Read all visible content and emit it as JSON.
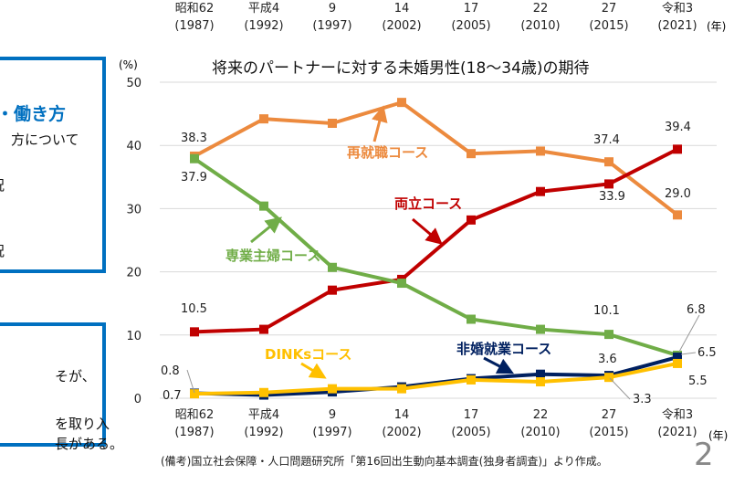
{
  "left_panel": {
    "box1": {
      "heading": "・働き方",
      "lines": [
        "方について",
        "況",
        "況"
      ]
    },
    "box2": {
      "lines": [
        "そが、",
        "を取り入",
        "長がある。"
      ]
    }
  },
  "top_axis": {
    "labels": [
      [
        "昭和62",
        "(1987)"
      ],
      [
        "平成4",
        "(1992)"
      ],
      [
        "9",
        "(1997)"
      ],
      [
        "14",
        "(2002)"
      ],
      [
        "17",
        "(2005)"
      ],
      [
        "22",
        "(2010)"
      ],
      [
        "27",
        "(2015)"
      ],
      [
        "令和3",
        "(2021)"
      ]
    ],
    "unit": "(年)"
  },
  "footnote": "(備考)国立社会保障・人口問題研究所「第16回出生動向基本調査(独身者調査)」より作成。",
  "page_number": "2",
  "chart_data": {
    "type": "line",
    "title": "将来のパートナーに対する未婚男性(18〜34歳)の期待",
    "ylabel": "(%)",
    "xlabel": "(年)",
    "ylim": [
      0,
      50
    ],
    "yticks": [
      "0",
      "10",
      "20",
      "30",
      "40",
      "50"
    ],
    "grid": true,
    "categories": [
      [
        "昭和62",
        "(1987)"
      ],
      [
        "平成4",
        "(1992)"
      ],
      [
        "9",
        "(1997)"
      ],
      [
        "14",
        "(2002)"
      ],
      [
        "17",
        "(2005)"
      ],
      [
        "22",
        "(2010)"
      ],
      [
        "27",
        "(2015)"
      ],
      [
        "令和3",
        "(2021)"
      ]
    ],
    "series": [
      {
        "name": "再就職コース",
        "color": "#EC8A3E",
        "values": [
          38.3,
          44.2,
          43.5,
          46.8,
          38.7,
          39.1,
          37.4,
          29.0
        ]
      },
      {
        "name": "専業主婦コース",
        "color": "#70AD47",
        "values": [
          37.9,
          30.4,
          20.7,
          18.2,
          12.5,
          10.9,
          10.1,
          6.8
        ]
      },
      {
        "name": "両立コース",
        "color": "#C00000",
        "values": [
          10.5,
          10.9,
          17.1,
          18.8,
          28.2,
          32.7,
          33.9,
          39.4
        ]
      },
      {
        "name": "非婚就業コース",
        "color": "#002060",
        "values": [
          0.8,
          0.5,
          1.0,
          1.8,
          3.1,
          3.8,
          3.6,
          6.5
        ]
      },
      {
        "name": "DINKsコース",
        "color": "#FFC000",
        "values": [
          0.7,
          0.9,
          1.5,
          1.5,
          2.9,
          2.6,
          3.3,
          5.5
        ]
      }
    ],
    "data_labels": [
      "38.3",
      "37.9",
      "10.5",
      "0.8",
      "0.7",
      "37.4",
      "33.9",
      "10.1",
      "3.6",
      "3.3",
      "39.4",
      "29.0",
      "6.8",
      "6.5",
      "5.5"
    ]
  }
}
